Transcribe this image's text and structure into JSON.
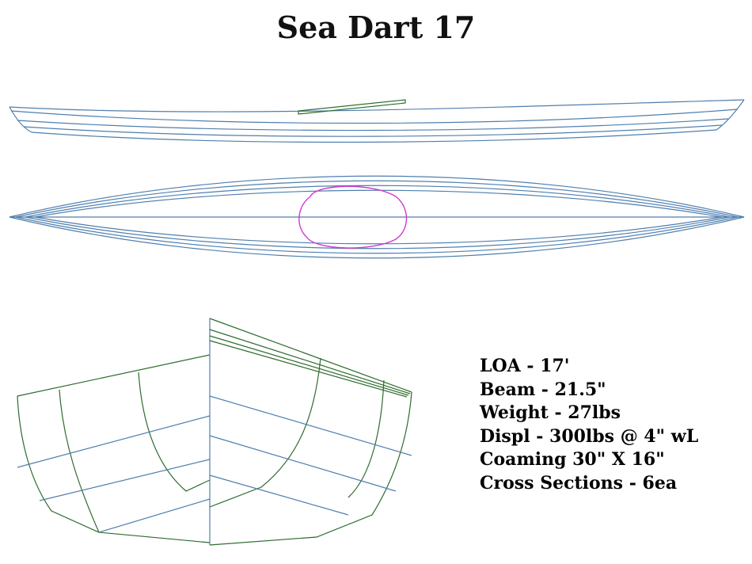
{
  "title": "Sea Dart 17",
  "specs": [
    "LOA - 17'",
    "Beam - 21.5\"",
    "Weight - 27lbs",
    "Displ - 300lbs @ 4\" wL",
    "Coaming 30\" X 16\"",
    "Cross Sections - 6ea"
  ],
  "colors": {
    "hull_line": "#4f7fae",
    "coaming": "#d23ad2",
    "section_line": "#2f6b2f",
    "text": "#000000"
  }
}
